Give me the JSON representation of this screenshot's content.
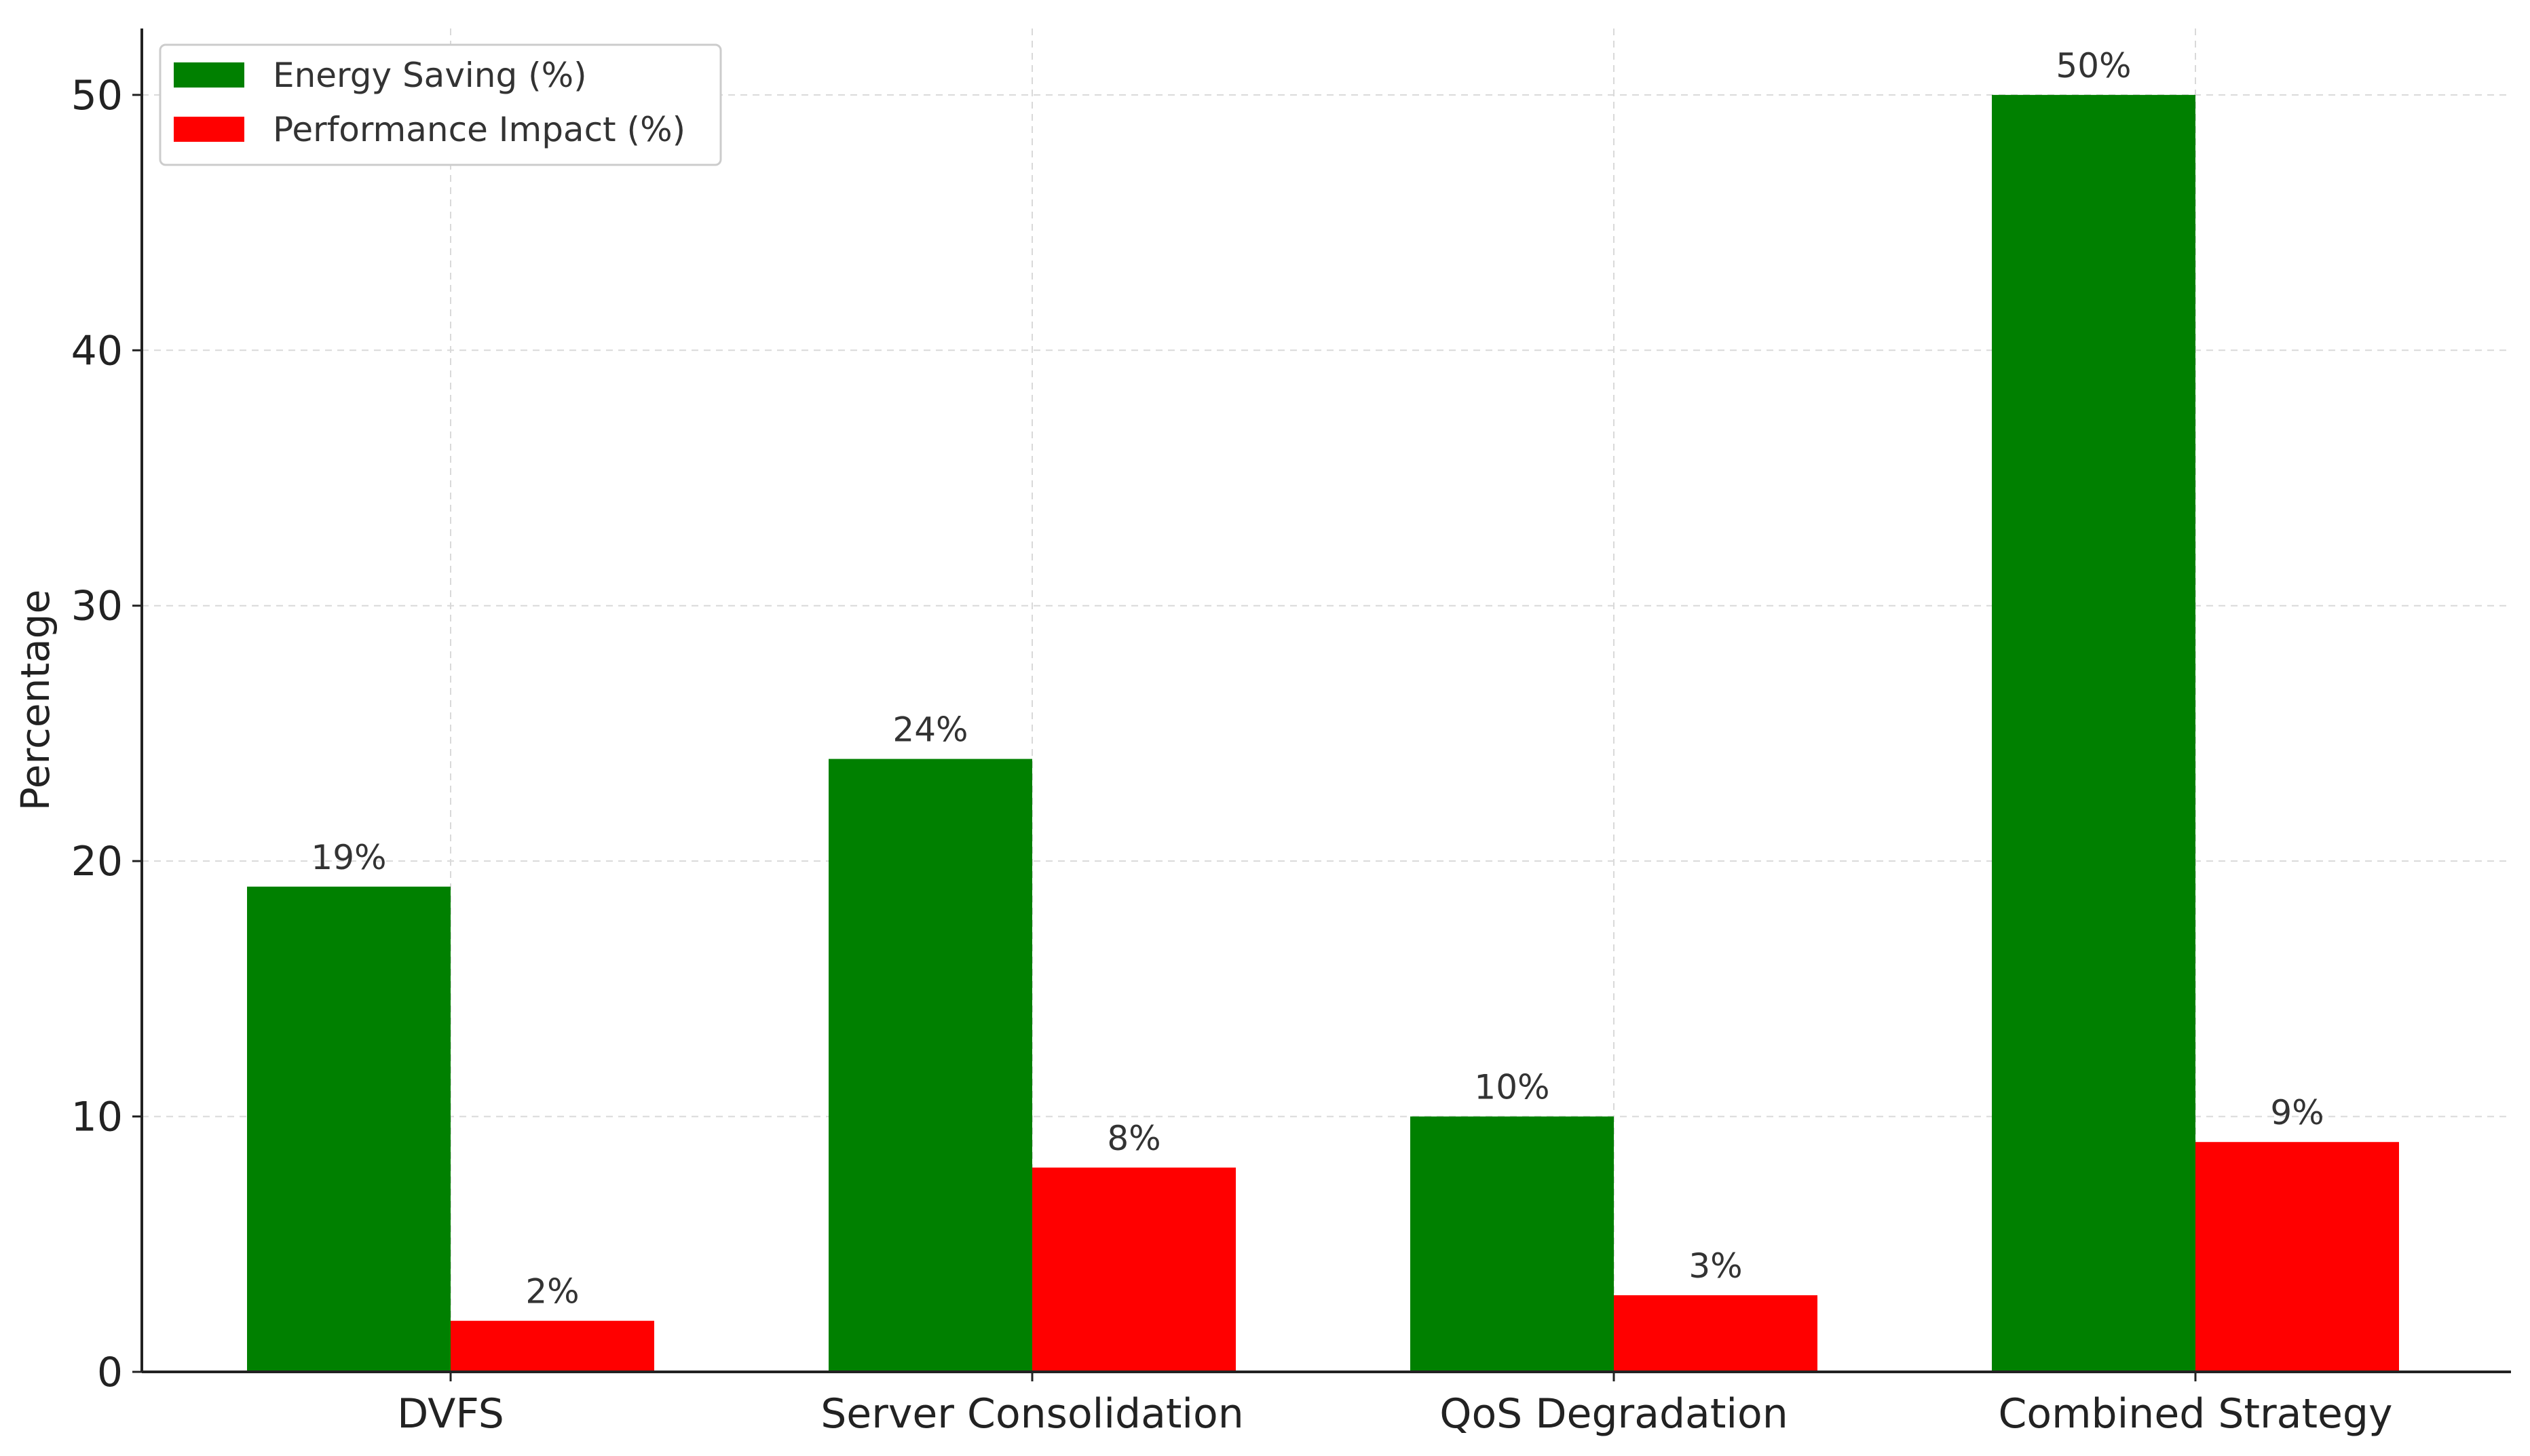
{
  "chart_data": {
    "type": "bar",
    "categories": [
      "DVFS",
      "Server Consolidation",
      "QoS Degradation",
      "Combined Strategy"
    ],
    "series": [
      {
        "name": "Energy Saving (%)",
        "values": [
          19,
          24,
          10,
          50
        ],
        "labels": [
          "19%",
          "24%",
          "10%",
          "50%"
        ],
        "color": "#008000"
      },
      {
        "name": "Performance Impact (%)",
        "values": [
          2,
          8,
          3,
          9
        ],
        "labels": [
          "2%",
          "8%",
          "3%",
          "9%"
        ],
        "color": "#ff0000"
      }
    ],
    "title": "",
    "xlabel": "",
    "ylabel": "Percentage",
    "ylim": [
      0,
      52.6
    ],
    "yticks": [
      0,
      10,
      20,
      30,
      40,
      50
    ],
    "grid": true,
    "legend_position": "top-left"
  }
}
